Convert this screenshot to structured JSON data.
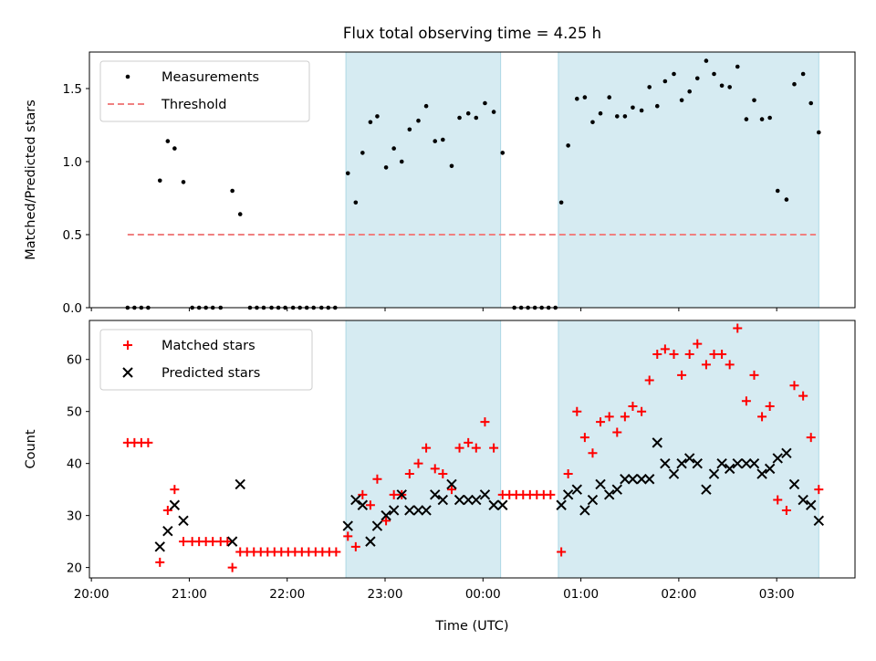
{
  "chart_data": [
    {
      "type": "scatter",
      "title": "Flux total observing time = 4.25 h",
      "xlabel": "",
      "ylabel": "Matched/Predicted stars",
      "ylim": [
        0,
        1.75
      ],
      "yticks": [
        "0.0",
        "0.5",
        "1.0",
        "1.5"
      ],
      "x_unit": "hours since 20:00 UTC",
      "legend": {
        "position": "top-left",
        "entries": [
          "Measurements",
          "Threshold"
        ]
      },
      "shaded_intervals": [
        [
          2.6,
          4.18
        ],
        [
          4.77,
          7.43
        ]
      ],
      "threshold": {
        "name": "Threshold",
        "value": 0.5,
        "x_range": [
          0.37,
          7.4
        ],
        "color": "#f08080"
      },
      "series": [
        {
          "name": "Measurements",
          "color": "#000000",
          "points": [
            [
              0.37,
              0
            ],
            [
              0.44,
              0
            ],
            [
              0.51,
              0
            ],
            [
              0.58,
              0
            ],
            [
              0.7,
              0.87
            ],
            [
              0.78,
              1.14
            ],
            [
              0.85,
              1.09
            ],
            [
              0.94,
              0.86
            ],
            [
              1.03,
              0
            ],
            [
              1.1,
              0
            ],
            [
              1.17,
              0
            ],
            [
              1.24,
              0
            ],
            [
              1.32,
              0
            ],
            [
              1.44,
              0.8
            ],
            [
              1.52,
              0.64
            ],
            [
              1.62,
              0
            ],
            [
              1.69,
              0
            ],
            [
              1.76,
              0
            ],
            [
              1.84,
              0
            ],
            [
              1.91,
              0
            ],
            [
              1.98,
              0
            ],
            [
              2.06,
              0
            ],
            [
              2.13,
              0
            ],
            [
              2.2,
              0
            ],
            [
              2.27,
              0
            ],
            [
              2.35,
              0
            ],
            [
              2.42,
              0
            ],
            [
              2.49,
              0
            ],
            [
              2.62,
              0.92
            ],
            [
              2.7,
              0.72
            ],
            [
              2.77,
              1.06
            ],
            [
              2.85,
              1.27
            ],
            [
              2.92,
              1.31
            ],
            [
              3.01,
              0.96
            ],
            [
              3.09,
              1.09
            ],
            [
              3.17,
              1.0
            ],
            [
              3.25,
              1.22
            ],
            [
              3.34,
              1.28
            ],
            [
              3.42,
              1.38
            ],
            [
              3.51,
              1.14
            ],
            [
              3.59,
              1.15
            ],
            [
              3.68,
              0.97
            ],
            [
              3.76,
              1.3
            ],
            [
              3.85,
              1.33
            ],
            [
              3.93,
              1.3
            ],
            [
              4.02,
              1.4
            ],
            [
              4.11,
              1.34
            ],
            [
              4.2,
              1.06
            ],
            [
              4.32,
              0
            ],
            [
              4.39,
              0
            ],
            [
              4.46,
              0
            ],
            [
              4.53,
              0
            ],
            [
              4.6,
              0
            ],
            [
              4.67,
              0
            ],
            [
              4.74,
              0
            ],
            [
              4.8,
              0.72
            ],
            [
              4.87,
              1.11
            ],
            [
              4.96,
              1.43
            ],
            [
              5.04,
              1.44
            ],
            [
              5.12,
              1.27
            ],
            [
              5.2,
              1.33
            ],
            [
              5.29,
              1.44
            ],
            [
              5.37,
              1.31
            ],
            [
              5.45,
              1.31
            ],
            [
              5.53,
              1.37
            ],
            [
              5.62,
              1.35
            ],
            [
              5.7,
              1.51
            ],
            [
              5.78,
              1.38
            ],
            [
              5.86,
              1.55
            ],
            [
              5.95,
              1.6
            ],
            [
              6.03,
              1.42
            ],
            [
              6.11,
              1.48
            ],
            [
              6.19,
              1.57
            ],
            [
              6.28,
              1.69
            ],
            [
              6.36,
              1.6
            ],
            [
              6.44,
              1.52
            ],
            [
              6.52,
              1.51
            ],
            [
              6.6,
              1.65
            ],
            [
              6.69,
              1.29
            ],
            [
              6.77,
              1.42
            ],
            [
              6.85,
              1.29
            ],
            [
              6.93,
              1.3
            ],
            [
              7.01,
              0.8
            ],
            [
              7.1,
              0.74
            ],
            [
              7.18,
              1.53
            ],
            [
              7.27,
              1.6
            ],
            [
              7.35,
              1.4
            ],
            [
              7.43,
              1.2
            ]
          ]
        }
      ]
    },
    {
      "type": "scatter",
      "title": "",
      "xlabel": "Time (UTC)",
      "ylabel": "Count",
      "ylim": [
        18,
        67.5
      ],
      "yticks": [
        "20",
        "30",
        "40",
        "50",
        "60"
      ],
      "xticks": [
        "20:00",
        "21:00",
        "22:00",
        "23:00",
        "00:00",
        "01:00",
        "02:00",
        "03:00"
      ],
      "x_unit": "hours since 20:00 UTC",
      "legend": {
        "position": "top-left",
        "entries": [
          "Matched stars",
          "Predicted stars"
        ]
      },
      "shaded_intervals": [
        [
          2.6,
          4.18
        ],
        [
          4.77,
          7.43
        ]
      ],
      "series": [
        {
          "name": "Matched stars",
          "marker": "+",
          "color": "#ff0000",
          "points": [
            [
              0.37,
              44
            ],
            [
              0.44,
              44
            ],
            [
              0.51,
              44
            ],
            [
              0.58,
              44
            ],
            [
              0.7,
              21
            ],
            [
              0.78,
              31
            ],
            [
              0.85,
              35
            ],
            [
              0.94,
              25
            ],
            [
              1.03,
              25
            ],
            [
              1.1,
              25
            ],
            [
              1.17,
              25
            ],
            [
              1.24,
              25
            ],
            [
              1.32,
              25
            ],
            [
              1.39,
              25
            ],
            [
              1.44,
              20
            ],
            [
              1.52,
              23
            ],
            [
              1.59,
              23
            ],
            [
              1.66,
              23
            ],
            [
              1.73,
              23
            ],
            [
              1.8,
              23
            ],
            [
              1.87,
              23
            ],
            [
              1.94,
              23
            ],
            [
              2.01,
              23
            ],
            [
              2.08,
              23
            ],
            [
              2.15,
              23
            ],
            [
              2.22,
              23
            ],
            [
              2.29,
              23
            ],
            [
              2.36,
              23
            ],
            [
              2.43,
              23
            ],
            [
              2.5,
              23
            ],
            [
              2.62,
              26
            ],
            [
              2.7,
              24
            ],
            [
              2.77,
              34
            ],
            [
              2.85,
              32
            ],
            [
              2.92,
              37
            ],
            [
              3.01,
              29
            ],
            [
              3.09,
              34
            ],
            [
              3.17,
              34
            ],
            [
              3.25,
              38
            ],
            [
              3.34,
              40
            ],
            [
              3.42,
              43
            ],
            [
              3.51,
              39
            ],
            [
              3.59,
              38
            ],
            [
              3.68,
              35
            ],
            [
              3.76,
              43
            ],
            [
              3.85,
              44
            ],
            [
              3.93,
              43
            ],
            [
              4.02,
              48
            ],
            [
              4.11,
              43
            ],
            [
              4.2,
              34
            ],
            [
              4.27,
              34
            ],
            [
              4.34,
              34
            ],
            [
              4.41,
              34
            ],
            [
              4.48,
              34
            ],
            [
              4.55,
              34
            ],
            [
              4.62,
              34
            ],
            [
              4.69,
              34
            ],
            [
              4.8,
              23
            ],
            [
              4.87,
              38
            ],
            [
              4.96,
              50
            ],
            [
              5.04,
              45
            ],
            [
              5.12,
              42
            ],
            [
              5.2,
              48
            ],
            [
              5.29,
              49
            ],
            [
              5.37,
              46
            ],
            [
              5.45,
              49
            ],
            [
              5.53,
              51
            ],
            [
              5.62,
              50
            ],
            [
              5.7,
              56
            ],
            [
              5.78,
              61
            ],
            [
              5.86,
              62
            ],
            [
              5.95,
              61
            ],
            [
              6.03,
              57
            ],
            [
              6.11,
              61
            ],
            [
              6.19,
              63
            ],
            [
              6.28,
              59
            ],
            [
              6.36,
              61
            ],
            [
              6.44,
              61
            ],
            [
              6.52,
              59
            ],
            [
              6.6,
              66
            ],
            [
              6.69,
              52
            ],
            [
              6.77,
              57
            ],
            [
              6.85,
              49
            ],
            [
              6.93,
              51
            ],
            [
              7.01,
              33
            ],
            [
              7.1,
              31
            ],
            [
              7.18,
              55
            ],
            [
              7.27,
              53
            ],
            [
              7.35,
              45
            ],
            [
              7.43,
              35
            ]
          ]
        },
        {
          "name": "Predicted stars",
          "marker": "x",
          "color": "#000000",
          "points": [
            [
              0.7,
              24
            ],
            [
              0.78,
              27
            ],
            [
              0.85,
              32
            ],
            [
              0.94,
              29
            ],
            [
              1.44,
              25
            ],
            [
              1.52,
              36
            ],
            [
              2.62,
              28
            ],
            [
              2.7,
              33
            ],
            [
              2.77,
              32
            ],
            [
              2.85,
              25
            ],
            [
              2.92,
              28
            ],
            [
              3.01,
              30
            ],
            [
              3.09,
              31
            ],
            [
              3.17,
              34
            ],
            [
              3.25,
              31
            ],
            [
              3.34,
              31
            ],
            [
              3.42,
              31
            ],
            [
              3.51,
              34
            ],
            [
              3.59,
              33
            ],
            [
              3.68,
              36
            ],
            [
              3.76,
              33
            ],
            [
              3.85,
              33
            ],
            [
              3.93,
              33
            ],
            [
              4.02,
              34
            ],
            [
              4.11,
              32
            ],
            [
              4.2,
              32
            ],
            [
              4.8,
              32
            ],
            [
              4.87,
              34
            ],
            [
              4.96,
              35
            ],
            [
              5.04,
              31
            ],
            [
              5.12,
              33
            ],
            [
              5.2,
              36
            ],
            [
              5.29,
              34
            ],
            [
              5.37,
              35
            ],
            [
              5.45,
              37
            ],
            [
              5.53,
              37
            ],
            [
              5.62,
              37
            ],
            [
              5.7,
              37
            ],
            [
              5.78,
              44
            ],
            [
              5.86,
              40
            ],
            [
              5.95,
              38
            ],
            [
              6.03,
              40
            ],
            [
              6.11,
              41
            ],
            [
              6.19,
              40
            ],
            [
              6.28,
              35
            ],
            [
              6.36,
              38
            ],
            [
              6.44,
              40
            ],
            [
              6.52,
              39
            ],
            [
              6.6,
              40
            ],
            [
              6.69,
              40
            ],
            [
              6.77,
              40
            ],
            [
              6.85,
              38
            ],
            [
              6.93,
              39
            ],
            [
              7.01,
              41
            ],
            [
              7.1,
              42
            ],
            [
              7.18,
              36
            ],
            [
              7.27,
              33
            ],
            [
              7.35,
              32
            ],
            [
              7.43,
              29
            ]
          ]
        }
      ]
    }
  ]
}
